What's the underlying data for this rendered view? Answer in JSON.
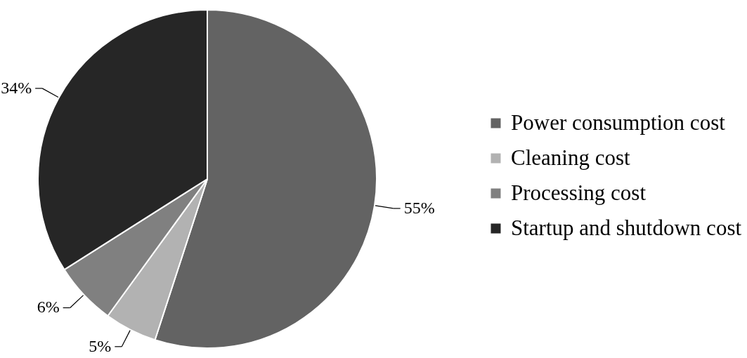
{
  "chart_data": {
    "type": "pie",
    "categories": [
      "Power consumption cost",
      "Cleaning cost",
      "Processing cost",
      "Startup and shutdown cost"
    ],
    "values": [
      55,
      5,
      6,
      34
    ],
    "colors": [
      "#636363",
      "#b2b2b2",
      "#808080",
      "#262626"
    ],
    "value_labels": [
      "55%",
      "5%",
      "6%",
      "34%"
    ],
    "legend": "right"
  }
}
